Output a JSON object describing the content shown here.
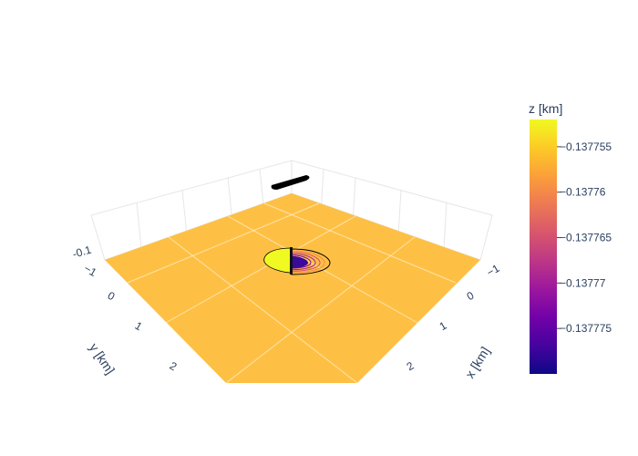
{
  "chart_data": {
    "type": "surface-3d",
    "surface": {
      "description_level": -0.1377575,
      "contours": [
        {
          "level": -0.137752,
          "kind": "lobe",
          "scale": 1.0
        },
        {
          "level": -0.13776,
          "kind": "lobe",
          "scale": 0.86
        },
        {
          "level": -0.137765,
          "kind": "lobe",
          "scale": 0.74
        },
        {
          "level": -0.13777,
          "kind": "lobe",
          "scale": 0.62
        },
        {
          "level": -0.137773,
          "kind": "lobe",
          "scale": 0.5
        },
        {
          "level": -0.137776,
          "kind": "lobe",
          "scale": 0.38
        },
        {
          "level": -0.137778,
          "kind": "lobe",
          "scale": 0.26
        }
      ],
      "source_bar_value": -0.1377545
    },
    "x_axis": {
      "title": "x [km]",
      "ticks": [
        "−1",
        "0",
        "1",
        "2"
      ],
      "tick_values": [
        -1,
        0,
        1,
        2
      ]
    },
    "y_axis": {
      "title": "y [km]",
      "ticks": [
        "−1",
        "0",
        "1",
        "2"
      ],
      "tick_values": [
        -1,
        0,
        1,
        2
      ]
    },
    "z_axis": {
      "ticks": [
        "-0.1"
      ],
      "tick_values": [
        -0.1
      ]
    },
    "colorbar": {
      "title": "z [km]",
      "ticks": [
        "−0.137755",
        "−0.13776",
        "−0.137765",
        "−0.13777",
        "−0.137775"
      ],
      "tick_values": [
        -0.137755,
        -0.13776,
        -0.137765,
        -0.13777,
        -0.137775
      ],
      "range": [
        -0.13778,
        -0.137752
      ],
      "colorscale": [
        "#0d0887",
        "#46039f",
        "#7201a8",
        "#9c179e",
        "#bd3786",
        "#d8576b",
        "#ed7953",
        "#fb9f3a",
        "#fdca26",
        "#f0f921"
      ]
    },
    "grid": true
  }
}
